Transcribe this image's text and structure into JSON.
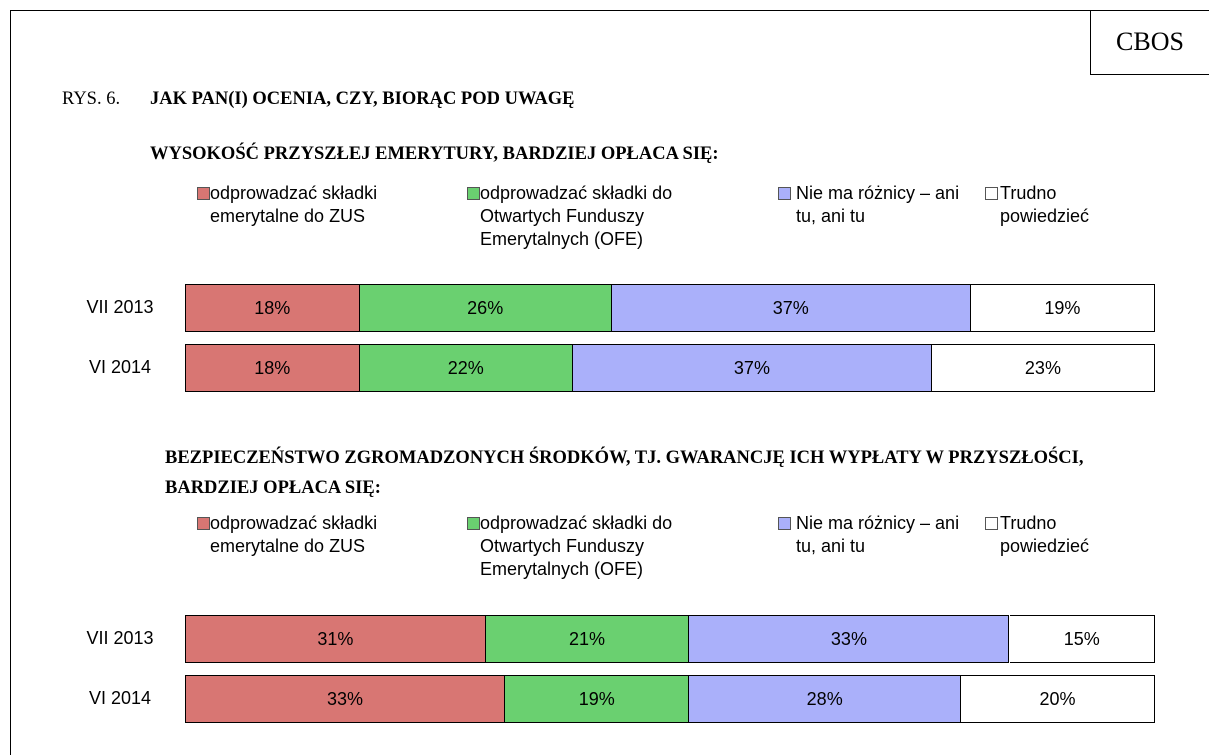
{
  "brand": "CBOS",
  "figure_label": "RYS. 6.",
  "figure_title": "JAK PAN(I) OCENIA, CZY, BIORĄC POD UWAGĘ",
  "chart_data": [
    {
      "type": "bar",
      "stacked": true,
      "orientation": "horizontal",
      "title": "WYSOKOŚĆ PRZYSZŁEJ EMERYTURY, BARDZIEJ OPŁACA SIĘ:",
      "categories": [
        "VII 2013",
        "VI 2014"
      ],
      "xlim": [
        0,
        100
      ],
      "series": [
        {
          "name": "odprowadzać składki emerytalne do ZUS",
          "color": "#d87673",
          "values": [
            18,
            18
          ],
          "value_labels": [
            "18%",
            "18%"
          ]
        },
        {
          "name": "odprowadzać składki do Otwartych Funduszy Emerytalnych (OFE)",
          "color": "#6ad070",
          "values": [
            26,
            22
          ],
          "value_labels": [
            "26%",
            "22%"
          ]
        },
        {
          "name": "Nie ma różnicy – ani tu, ani tu",
          "color": "#aab0fa",
          "values": [
            37,
            37
          ],
          "value_labels": [
            "37%",
            "37%"
          ]
        },
        {
          "name": "Trudno powiedzieć",
          "color": "#ffffff",
          "values": [
            19,
            23
          ],
          "value_labels": [
            "19%",
            "23%"
          ]
        }
      ]
    },
    {
      "type": "bar",
      "stacked": true,
      "orientation": "horizontal",
      "title": "BEZPIECZEŃSTWO ZGROMADZONYCH ŚRODKÓW, TJ. GWARANCJĘ ICH WYPŁATY W PRZYSZŁOŚCI, BARDZIEJ OPŁACA SIĘ:",
      "categories": [
        "VII 2013",
        "VI 2014"
      ],
      "xlim": [
        0,
        100
      ],
      "series": [
        {
          "name": "odprowadzać składki emerytalne do ZUS",
          "color": "#d87673",
          "values": [
            31,
            33
          ],
          "value_labels": [
            "31%",
            "33%"
          ]
        },
        {
          "name": "odprowadzać składki do Otwartych Funduszy Emerytalnych (OFE)",
          "color": "#6ad070",
          "values": [
            21,
            19
          ],
          "value_labels": [
            "21%",
            "19%"
          ]
        },
        {
          "name": "Nie ma różnicy – ani tu, ani tu",
          "color": "#aab0fa",
          "values": [
            33,
            28
          ],
          "value_labels": [
            "33%",
            "28%"
          ]
        },
        {
          "name": "Trudno powiedzieć",
          "color": "#ffffff",
          "values": [
            15,
            20
          ],
          "value_labels": [
            "15%",
            "20%"
          ]
        }
      ]
    }
  ]
}
